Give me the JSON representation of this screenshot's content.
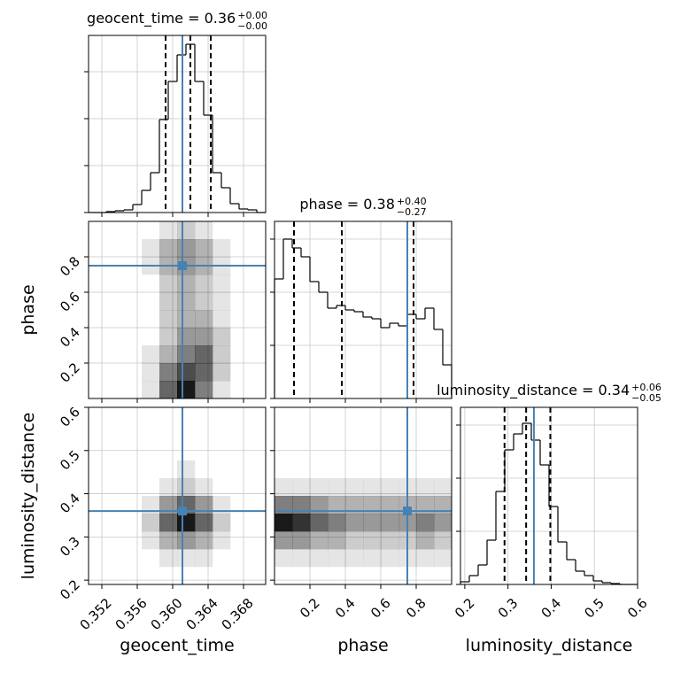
{
  "chart_data": [
    {
      "type": "histogram",
      "title": "geocent_time = 0.36",
      "title_upper": "+0.00",
      "title_lower": "−0.00",
      "bins": [
        0.3505,
        0.3515,
        0.3525,
        0.3535,
        0.3545,
        0.3555,
        0.3565,
        0.3575,
        0.3585,
        0.3595,
        0.3605,
        0.3615,
        0.3625,
        0.3635,
        0.3645,
        0.3655,
        0.3665,
        0.3675,
        0.3685,
        0.3695,
        0.3705
      ],
      "counts": [
        0,
        0,
        1,
        2,
        3,
        9,
        25,
        45,
        105,
        148,
        178,
        190,
        148,
        110,
        45,
        28,
        10,
        4,
        3,
        0
      ],
      "xlim": [
        0.3505,
        0.3705
      ],
      "xticks": [
        0.352,
        0.356,
        0.36,
        0.364,
        0.368
      ],
      "ylim": [
        0,
        200
      ],
      "yticks": [
        0,
        53,
        106,
        159
      ],
      "quantiles": [
        0.3592,
        0.362,
        0.3643
      ],
      "truth": 0.3611,
      "color": "#000000",
      "truth_color": "#4682b4",
      "grid": true
    },
    {
      "type": "hist2d",
      "ylabel": "phase",
      "xlim": [
        0.3505,
        0.3705
      ],
      "xticks": [
        0.352,
        0.356,
        0.36,
        0.364,
        0.368
      ],
      "ylim": [
        0,
        1
      ],
      "yticks": [
        0.2,
        0.4,
        0.6,
        0.8
      ],
      "counts": [
        [
          0,
          0,
          0,
          1,
          6,
          9,
          5,
          1,
          0,
          0
        ],
        [
          0,
          0,
          0,
          1,
          5,
          7,
          6,
          2,
          0,
          0
        ],
        [
          0,
          0,
          0,
          1,
          3,
          5,
          6,
          2,
          0,
          0
        ],
        [
          0,
          0,
          0,
          0,
          2,
          4,
          4,
          2,
          0,
          0
        ],
        [
          0,
          0,
          0,
          0,
          2,
          3,
          3,
          1,
          0,
          0
        ],
        [
          0,
          0,
          0,
          0,
          2,
          3,
          2,
          1,
          0,
          0
        ],
        [
          0,
          0,
          0,
          0,
          2,
          3,
          2,
          1,
          0,
          0
        ],
        [
          0,
          0,
          0,
          1,
          3,
          4,
          3,
          1,
          0,
          0
        ],
        [
          0,
          0,
          0,
          1,
          3,
          4,
          3,
          1,
          0,
          0
        ],
        [
          0,
          0,
          0,
          0,
          1,
          2,
          1,
          0,
          0,
          0
        ]
      ],
      "truth": [
        0.3611,
        0.75
      ],
      "truth_color": "#4682b4",
      "grid": true
    },
    {
      "type": "histogram",
      "title": "phase = 0.38",
      "title_upper": "+0.40",
      "title_lower": "−0.27",
      "bins": [
        0,
        0.05,
        0.1,
        0.15,
        0.2,
        0.25,
        0.3,
        0.35,
        0.4,
        0.45,
        0.5,
        0.55,
        0.6,
        0.65,
        0.7,
        0.75,
        0.8,
        0.85,
        0.9,
        0.95,
        1.0
      ],
      "counts": [
        135,
        180,
        170,
        160,
        132,
        120,
        102,
        105,
        100,
        98,
        92,
        90,
        80,
        85,
        82,
        95,
        90,
        102,
        78,
        38
      ],
      "xlim": [
        0,
        1
      ],
      "xticks": [
        0.2,
        0.4,
        0.6,
        0.8
      ],
      "ylim": [
        0,
        200
      ],
      "yticks": [
        0,
        60,
        120,
        180
      ],
      "quantiles": [
        0.11,
        0.38,
        0.785
      ],
      "truth": 0.75,
      "color": "#000000",
      "truth_color": "#4682b4",
      "grid": true
    },
    {
      "type": "hist2d",
      "xlabel": "geocent_time",
      "ylabel": "luminosity_distance",
      "xlim": [
        0.3505,
        0.3705
      ],
      "xticks": [
        0.352,
        0.356,
        {
          "value": 0.36,
          "label": "0.360"
        },
        0.364,
        0.368
      ],
      "ylim": [
        0.19,
        0.6
      ],
      "yticks": [
        0.2,
        0.3,
        0.4,
        0.5,
        0.6
      ],
      "counts": [
        [
          0,
          0,
          0,
          0,
          0,
          0,
          0,
          0,
          0,
          0
        ],
        [
          0,
          0,
          0,
          0,
          1,
          1,
          1,
          0,
          0,
          0
        ],
        [
          0,
          0,
          0,
          1,
          3,
          4,
          3,
          1,
          0,
          0
        ],
        [
          0,
          0,
          0,
          2,
          6,
          9,
          6,
          2,
          0,
          0
        ],
        [
          0,
          0,
          0,
          1,
          4,
          6,
          4,
          1,
          0,
          0
        ],
        [
          0,
          0,
          0,
          0,
          1,
          2,
          1,
          0,
          0,
          0
        ],
        [
          0,
          0,
          0,
          0,
          0,
          1,
          0,
          0,
          0,
          0
        ],
        [
          0,
          0,
          0,
          0,
          0,
          0,
          0,
          0,
          0,
          0
        ],
        [
          0,
          0,
          0,
          0,
          0,
          0,
          0,
          0,
          0,
          0
        ],
        [
          0,
          0,
          0,
          0,
          0,
          0,
          0,
          0,
          0,
          0
        ]
      ],
      "truth": [
        0.3611,
        0.36
      ],
      "truth_color": "#4682b4",
      "grid": true
    },
    {
      "type": "hist2d",
      "xlabel": "phase",
      "xlim": [
        0,
        1
      ],
      "xticks": [
        0.2,
        0.4,
        0.6,
        0.8
      ],
      "ylim": [
        0.19,
        0.6
      ],
      "yticks": [
        0.2,
        0.3,
        0.4,
        0.5,
        0.6
      ],
      "counts": [
        [
          0,
          0,
          0,
          0,
          0,
          0,
          0,
          0,
          0,
          0
        ],
        [
          1,
          1,
          1,
          1,
          1,
          1,
          1,
          1,
          1,
          1
        ],
        [
          4,
          4,
          3,
          3,
          2,
          2,
          2,
          2,
          3,
          2
        ],
        [
          9,
          8,
          6,
          5,
          4,
          4,
          4,
          4,
          5,
          4
        ],
        [
          5,
          5,
          4,
          3,
          3,
          3,
          3,
          3,
          3,
          3
        ],
        [
          1,
          1,
          1,
          1,
          1,
          1,
          1,
          1,
          1,
          1
        ],
        [
          0,
          0,
          0,
          0,
          0,
          0,
          0,
          0,
          0,
          0
        ],
        [
          0,
          0,
          0,
          0,
          0,
          0,
          0,
          0,
          0,
          0
        ],
        [
          0,
          0,
          0,
          0,
          0,
          0,
          0,
          0,
          0,
          0
        ],
        [
          0,
          0,
          0,
          0,
          0,
          0,
          0,
          0,
          0,
          0
        ]
      ],
      "truth": [
        0.75,
        0.36
      ],
      "truth_color": "#4682b4",
      "grid": true
    },
    {
      "type": "histogram",
      "xlabel": "luminosity_distance",
      "title": "luminosity_distance = 0.34",
      "title_upper": "+0.06",
      "title_lower": "−0.05",
      "bins": [
        0.19,
        0.2105,
        0.231,
        0.2515,
        0.272,
        0.2925,
        0.313,
        0.3335,
        0.354,
        0.3745,
        0.395,
        0.4155,
        0.436,
        0.4565,
        0.477,
        0.4975,
        0.518,
        0.5385,
        0.559,
        0.5795,
        0.6
      ],
      "counts": [
        3,
        10,
        22,
        50,
        105,
        152,
        170,
        182,
        163,
        135,
        88,
        48,
        28,
        15,
        10,
        4,
        2,
        1,
        0,
        0
      ],
      "xlim": [
        0.19,
        0.6
      ],
      "xticks": [
        0.2,
        0.3,
        0.4,
        0.5,
        0.6
      ],
      "ylim": [
        0,
        200
      ],
      "yticks": [
        0,
        60,
        120,
        180
      ],
      "quantiles": [
        0.292,
        0.342,
        0.398
      ],
      "truth": 0.36,
      "color": "#000000",
      "truth_color": "#4682b4",
      "grid": true
    }
  ]
}
